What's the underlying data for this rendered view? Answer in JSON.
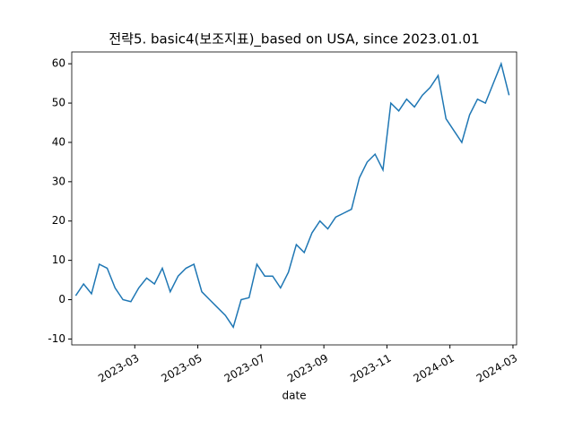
{
  "chart_data": {
    "type": "line",
    "title": "전략5. basic4(보조지표)_based on USA, since 2023.01.01",
    "xlabel": "date",
    "x": [
      "2023-01",
      "2023-01",
      "2023-01",
      "2023-01",
      "2023-02",
      "2023-02",
      "2023-02",
      "2023-02",
      "2023-03",
      "2023-03",
      "2023-03",
      "2023-03",
      "2023-04",
      "2023-04",
      "2023-04",
      "2023-04",
      "2023-05",
      "2023-05",
      "2023-05",
      "2023-05",
      "2023-06",
      "2023-06",
      "2023-06",
      "2023-06",
      "2023-07",
      "2023-07",
      "2023-07",
      "2023-07",
      "2023-08",
      "2023-08",
      "2023-08",
      "2023-08",
      "2023-09",
      "2023-09",
      "2023-09",
      "2023-09",
      "2023-10",
      "2023-10",
      "2023-10",
      "2023-10",
      "2023-11",
      "2023-11",
      "2023-11",
      "2023-11",
      "2023-12",
      "2023-12",
      "2023-12",
      "2023-12",
      "2024-01",
      "2024-01",
      "2024-01",
      "2024-01",
      "2024-02",
      "2024-02",
      "2024-02",
      "2024-02"
    ],
    "series": [
      {
        "color": "#1f77b4",
        "values": [
          1,
          4,
          1.5,
          9,
          8,
          3,
          0,
          -0.5,
          3,
          5.5,
          4,
          8,
          2,
          6,
          8,
          9,
          2,
          0,
          -2,
          -4,
          -7,
          0,
          0.5,
          9,
          6,
          6,
          3,
          7,
          14,
          12,
          17,
          20,
          18,
          21,
          22,
          23,
          31,
          35,
          37,
          33,
          50,
          48,
          51,
          49,
          52,
          54,
          57,
          46,
          43,
          40,
          47,
          51,
          50,
          55,
          60,
          52
        ]
      }
    ],
    "ylim": [
      -11.5,
      63
    ],
    "yticks": [
      -10,
      0,
      10,
      20,
      30,
      40,
      50,
      60
    ],
    "xticks": [
      "2023-03",
      "2023-05",
      "2023-07",
      "2023-09",
      "2023-11",
      "2024-01",
      "2024-03"
    ]
  }
}
